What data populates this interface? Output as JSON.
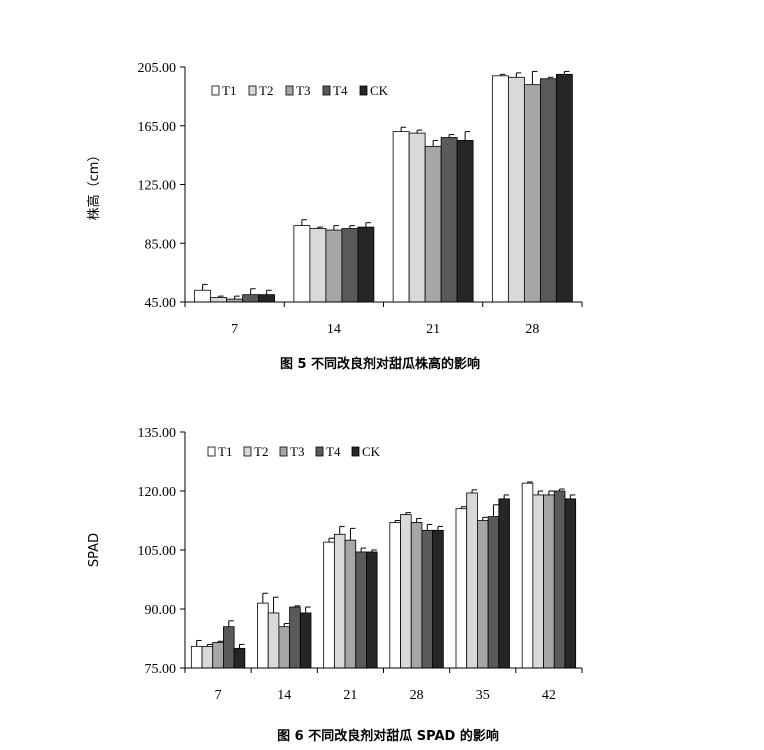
{
  "series_colors": [
    "#ffffff",
    "#d9d9d9",
    "#a6a6a6",
    "#5a5a5a",
    "#262626"
  ],
  "chart_data": [
    {
      "type": "bar",
      "title": "",
      "caption": "图 5   不同改良剂对甜瓜株高的影响",
      "xlabel": "",
      "ylabel": "株高（cm）",
      "ylim": [
        45,
        205
      ],
      "yticks": [
        "45.00",
        "85.00",
        "125.00",
        "165.00",
        "205.00"
      ],
      "categories": [
        "7",
        "14",
        "21",
        "28"
      ],
      "legend_position": "top-left",
      "series": [
        {
          "name": "T1",
          "values": [
            53,
            97,
            161,
            199
          ],
          "errors": [
            4,
            4,
            3,
            1
          ]
        },
        {
          "name": "T2",
          "values": [
            48,
            95,
            160,
            198
          ],
          "errors": [
            1,
            1,
            2,
            3
          ]
        },
        {
          "name": "T3",
          "values": [
            47,
            94,
            151,
            193
          ],
          "errors": [
            2,
            3,
            4,
            9
          ]
        },
        {
          "name": "T4",
          "values": [
            50,
            95,
            157,
            197
          ],
          "errors": [
            4,
            2,
            2,
            1
          ]
        },
        {
          "name": "CK",
          "values": [
            50,
            96,
            155,
            200
          ],
          "errors": [
            3,
            3,
            6,
            2
          ]
        }
      ]
    },
    {
      "type": "bar",
      "title": "",
      "caption": "图 6   不同改良剂对甜瓜 SPAD 的影响",
      "xlabel": "",
      "ylabel": "SPAD",
      "ylim": [
        75,
        135
      ],
      "yticks": [
        "75.00",
        "90.00",
        "105.00",
        "120.00",
        "135.00"
      ],
      "categories": [
        "7",
        "14",
        "21",
        "28",
        "35",
        "42"
      ],
      "legend_position": "top-left",
      "series": [
        {
          "name": "T1",
          "values": [
            80.5,
            91.5,
            107,
            112,
            115.5,
            122
          ],
          "errors": [
            1.5,
            2.5,
            1,
            0.5,
            0.5,
            0.3
          ]
        },
        {
          "name": "T2",
          "values": [
            80.5,
            89,
            109,
            114,
            119.5,
            119
          ],
          "errors": [
            0.5,
            4,
            2,
            0.5,
            0.8,
            1
          ]
        },
        {
          "name": "T3",
          "values": [
            81.5,
            85.5,
            107.5,
            112,
            112.5,
            119
          ],
          "errors": [
            0.3,
            0.8,
            3,
            1,
            0.8,
            1
          ]
        },
        {
          "name": "T4",
          "values": [
            85.5,
            90.5,
            104.5,
            110,
            113.5,
            120
          ],
          "errors": [
            1.5,
            0.3,
            1,
            1.5,
            3,
            0.5
          ]
        },
        {
          "name": "CK",
          "values": [
            80,
            89,
            104.5,
            110,
            118,
            118
          ],
          "errors": [
            1,
            1.5,
            0.5,
            1,
            1,
            1
          ]
        }
      ]
    }
  ]
}
